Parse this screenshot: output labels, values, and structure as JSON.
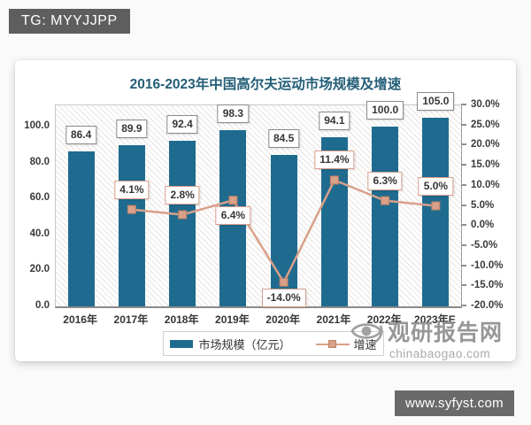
{
  "page": {
    "tg_badge": "TG: MYYJJPP",
    "footer_badge": "www.syfyst.com"
  },
  "watermark": {
    "site_name": "观研报告网",
    "site_domain": "chinabaogao.com"
  },
  "chart_data": {
    "type": "bar+line",
    "title": "2016-2023年中国高尔夫运动市场规模及增速",
    "categories": [
      "2016年",
      "2017年",
      "2018年",
      "2019年",
      "2020年",
      "2021年",
      "2022年",
      "2023年E"
    ],
    "series": [
      {
        "name": "市场规模（亿元）",
        "type": "bar",
        "axis": "left",
        "values": [
          86.4,
          89.9,
          92.4,
          98.3,
          84.5,
          94.1,
          100.0,
          105.0
        ],
        "labels": [
          "86.4",
          "89.9",
          "92.4",
          "98.3",
          "84.5",
          "94.1",
          "100.0",
          "105.0"
        ]
      },
      {
        "name": "增速",
        "type": "line",
        "axis": "right",
        "marker": "square",
        "values": [
          null,
          4.1,
          2.8,
          6.4,
          -14.0,
          11.4,
          6.3,
          5.0
        ],
        "labels": [
          "",
          "4.1%",
          "2.8%",
          "6.4%",
          "-14.0%",
          "11.4%",
          "6.3%",
          "5.0%"
        ],
        "label_positions": [
          "none",
          "above",
          "above",
          "below",
          "below",
          "above",
          "above",
          "above"
        ]
      }
    ],
    "left_axis": {
      "ticks": [
        "0.0",
        "20.0",
        "40.0",
        "60.0",
        "80.0",
        "100.0"
      ],
      "min": 0,
      "max": 112
    },
    "right_axis": {
      "ticks": [
        "30.0%",
        "25.0%",
        "20.0%",
        "15.0%",
        "10.0%",
        "5.0%",
        "0.0%",
        "-5.0%",
        "-10.0%",
        "-15.0%",
        "-20.0%"
      ],
      "min": -20,
      "max": 30
    },
    "legend_position": "bottom",
    "grid": false,
    "plot_hatch": true
  },
  "legend": {
    "items": [
      {
        "label": "市场规模（亿元）",
        "swatch": "bar"
      },
      {
        "label": "增速",
        "swatch": "line"
      }
    ]
  },
  "colors": {
    "bar": "#1f6b8f",
    "line": "#d9a08a",
    "line_marker_border": "#bd7f63",
    "title": "#235e77",
    "tg_badge_bg": "#5e5e5e",
    "footer_badge_bg": "#6a6a6a",
    "watermark": "#8f8f8f"
  }
}
